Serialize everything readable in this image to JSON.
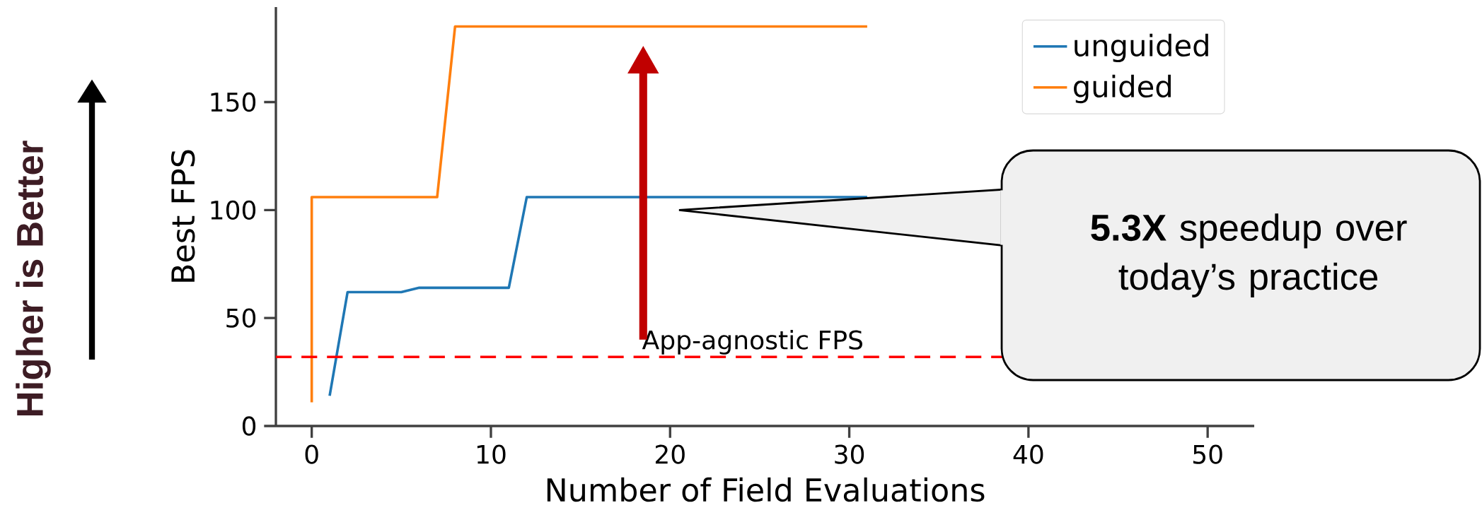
{
  "chart_data": {
    "type": "line",
    "xlabel": "Number of Field Evaluations",
    "ylabel": "Best FPS",
    "xlim": [
      -2,
      52.6
    ],
    "ylim": [
      0,
      194
    ],
    "xticks": [
      0,
      10,
      20,
      30,
      40,
      50
    ],
    "yticks": [
      0,
      50,
      100,
      150
    ],
    "series": [
      {
        "name": "unguided",
        "color": "#1f77b4",
        "x": [
          1,
          2,
          5,
          6,
          11,
          12,
          31
        ],
        "values": [
          14,
          62,
          62,
          64,
          64,
          106,
          106
        ]
      },
      {
        "name": "guided",
        "color": "#ff7f0e",
        "x": [
          0,
          0,
          7,
          8,
          31
        ],
        "values": [
          11,
          106,
          106,
          185,
          185
        ]
      }
    ],
    "ref_lines": [
      {
        "axis": "y",
        "value": 32,
        "label": "App-agnostic FPS",
        "color": "#ff0000",
        "line_style": "dashed"
      }
    ],
    "annotations": [
      "**5.3X** speedup over today’s practice",
      "Higher is Better"
    ],
    "legend": "top right",
    "grid": false,
    "marker": "none",
    "line_style": "solid"
  }
}
